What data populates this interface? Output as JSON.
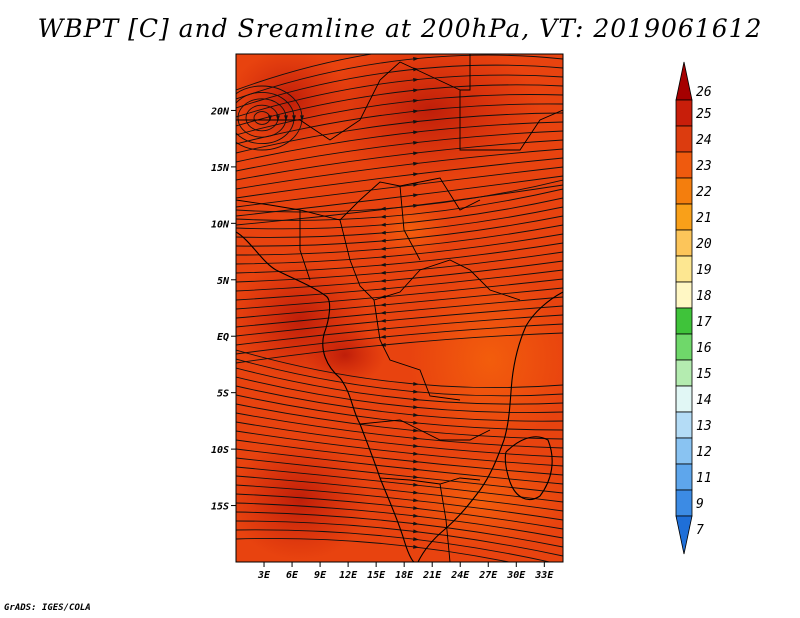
{
  "title": "WBPT [C] and Sreamline at 200hPa, VT: 2019061612",
  "credit": "GrADS: IGES/COLA",
  "map": {
    "lon_range": [
      0,
      35
    ],
    "lat_range": [
      -20,
      25
    ],
    "x_ticks": [
      "3E",
      "6E",
      "9E",
      "12E",
      "15E",
      "18E",
      "21E",
      "24E",
      "27E",
      "30E",
      "33E"
    ],
    "x_tick_values": [
      3,
      6,
      9,
      12,
      15,
      18,
      21,
      24,
      27,
      30,
      33
    ],
    "y_ticks": [
      "20N",
      "15N",
      "10N",
      "5N",
      "EQ",
      "5S",
      "10S",
      "15S"
    ],
    "y_tick_values": [
      20,
      15,
      10,
      5,
      0,
      -5,
      -10,
      -15
    ],
    "base_color": "#e8430f"
  },
  "colorbar": {
    "labels": [
      "26",
      "25",
      "24",
      "23",
      "22",
      "21",
      "20",
      "19",
      "18",
      "17",
      "16",
      "15",
      "14",
      "13",
      "12",
      "11",
      "9",
      "7"
    ],
    "colors": [
      "#a50000",
      "#c81e0a",
      "#dc3c0f",
      "#ef5a0e",
      "#f47e0d",
      "#f9a019",
      "#fcc55a",
      "#fde791",
      "#fff7c4",
      "#3fc33a",
      "#6fd86a",
      "#b4ecb0",
      "#e1f7f5",
      "#b4dcf6",
      "#89c3f2",
      "#5ea6ec",
      "#3c8be4",
      "#1f6fd8"
    ]
  }
}
